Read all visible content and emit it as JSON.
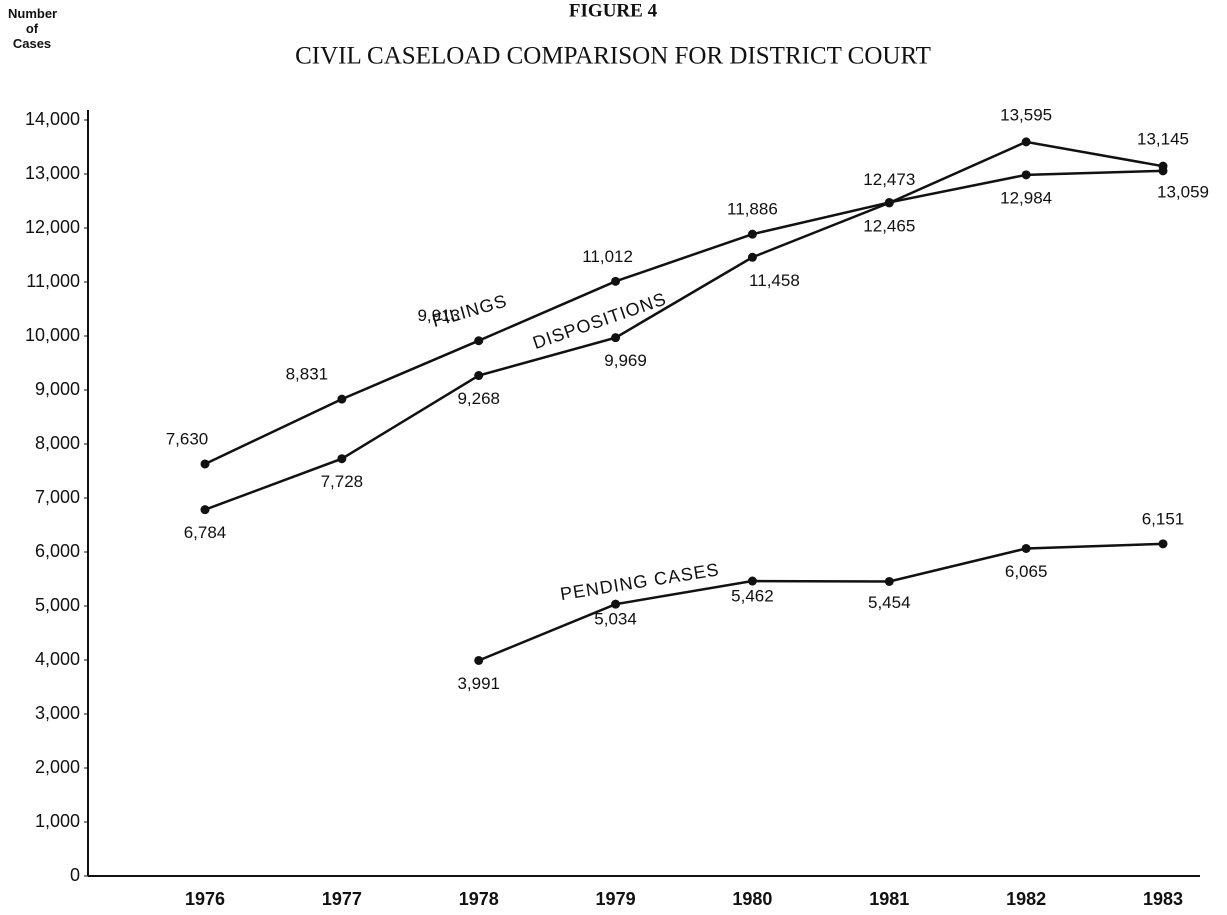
{
  "chart_data": {
    "type": "line",
    "title": "FIGURE 4",
    "subtitle": "CIVIL CASELOAD COMPARISON FOR DISTRICT COURT",
    "y_label": "Number of Cases",
    "categories": [
      "1976",
      "1977",
      "1978",
      "1979",
      "1980",
      "1981",
      "1982",
      "1983"
    ],
    "series": [
      {
        "name": "FILINGS",
        "color": "#111111",
        "values": [
          7630,
          8831,
          9913,
          11012,
          11886,
          12473,
          12984,
          13059
        ],
        "value_labels": [
          "7,630",
          "8,831",
          "9,913",
          "11,012",
          "11,886",
          "12,473",
          "12,984",
          "13,059"
        ]
      },
      {
        "name": "DISPOSITIONS",
        "color": "#111111",
        "values": [
          6784,
          7728,
          9268,
          9969,
          11458,
          12465,
          13595,
          13145
        ],
        "value_labels": [
          "6,784",
          "7,728",
          "9,268",
          "9,969",
          "11,458",
          "12,465",
          "13,595",
          "13,145"
        ]
      },
      {
        "name": "PENDING CASES",
        "color": "#111111",
        "values": [
          null,
          null,
          3991,
          5034,
          5462,
          5454,
          6065,
          6151
        ],
        "value_labels": [
          null,
          null,
          "3,991",
          "5,034",
          "5,462",
          "5,454",
          "6,065",
          "6,151"
        ]
      }
    ],
    "ylim": [
      0,
      14000
    ],
    "yticks": [
      0,
      {
        "value": 1000,
        "label": "1,000"
      },
      {
        "value": 2000,
        "label": "2,000"
      },
      {
        "value": 3000,
        "label": "3,000"
      },
      {
        "value": 4000,
        "label": "4,000"
      },
      {
        "value": 5000,
        "label": "5,000"
      },
      {
        "value": 6000,
        "label": "6,000"
      },
      {
        "value": 7000,
        "label": "7,000"
      },
      {
        "value": 8000,
        "label": "8,000"
      },
      {
        "value": 9000,
        "label": "9,000"
      },
      {
        "value": 10000,
        "label": "10,000"
      },
      {
        "value": 11000,
        "label": "11,000"
      },
      {
        "value": 12000,
        "label": "12,000"
      },
      {
        "value": 13000,
        "label": "13,000"
      },
      {
        "value": 14000,
        "label": "14,000"
      }
    ],
    "grid": false
  }
}
